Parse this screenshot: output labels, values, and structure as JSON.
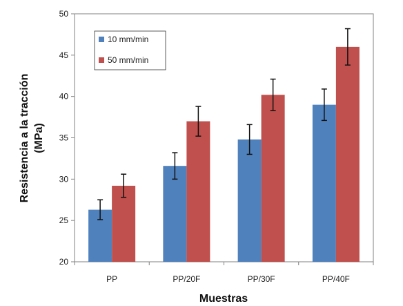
{
  "chart_data": {
    "type": "bar",
    "categories": [
      "PP",
      "PP/20F",
      "PP/30F",
      "PP/40F"
    ],
    "series": [
      {
        "name": "10 mm/min",
        "color": "#4f81bd",
        "values": [
          26.3,
          31.6,
          34.8,
          39.0
        ],
        "errors": [
          1.2,
          1.6,
          1.8,
          1.9
        ]
      },
      {
        "name": "50 mm/min",
        "color": "#c0504d",
        "values": [
          29.2,
          37.0,
          40.2,
          46.0
        ],
        "errors": [
          1.4,
          1.8,
          1.9,
          2.2
        ]
      }
    ],
    "xlabel": "Muestras",
    "ylabel_line1": "Resistencia a la tracción",
    "ylabel_line2": "(MPa)",
    "ylim": [
      20,
      50
    ],
    "yticks": [
      20,
      25,
      30,
      35,
      40,
      45,
      50
    ],
    "grid": false,
    "legend_position": "top-left"
  }
}
